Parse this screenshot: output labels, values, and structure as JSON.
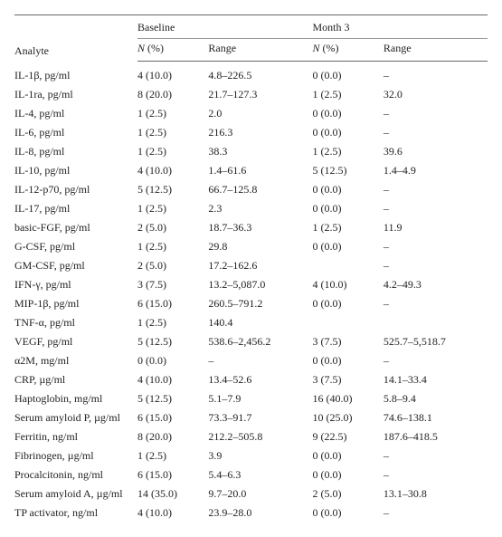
{
  "table": {
    "font_family": "Times New Roman",
    "font_size_pt": 9,
    "text_color": "#222222",
    "background_color": "#ffffff",
    "rule_color": "#666666",
    "header": {
      "analyte_label": "Analyte",
      "groups": [
        "Baseline",
        "Month 3"
      ],
      "sub_n_label": "N (%)",
      "sub_range_label": "Range",
      "n_label_italic_prefix": "N",
      "n_label_rest": " (%)"
    },
    "rows": [
      {
        "analyte": "IL-1β, pg/ml",
        "baseline_n": "4 (10.0)",
        "baseline_range": "4.8–226.5",
        "m3_n": "0 (0.0)",
        "m3_range": "–"
      },
      {
        "analyte": "IL-1ra, pg/ml",
        "baseline_n": "8 (20.0)",
        "baseline_range": "21.7–127.3",
        "m3_n": "1 (2.5)",
        "m3_range": "32.0"
      },
      {
        "analyte": "IL-4, pg/ml",
        "baseline_n": "1 (2.5)",
        "baseline_range": "2.0",
        "m3_n": "0 (0.0)",
        "m3_range": "–"
      },
      {
        "analyte": "IL-6, pg/ml",
        "baseline_n": "1 (2.5)",
        "baseline_range": "216.3",
        "m3_n": "0 (0.0)",
        "m3_range": "–"
      },
      {
        "analyte": "IL-8, pg/ml",
        "baseline_n": "1 (2.5)",
        "baseline_range": "38.3",
        "m3_n": "1 (2.5)",
        "m3_range": "39.6"
      },
      {
        "analyte": "IL-10, pg/ml",
        "baseline_n": "4 (10.0)",
        "baseline_range": "1.4–61.6",
        "m3_n": "5 (12.5)",
        "m3_range": "1.4–4.9"
      },
      {
        "analyte": "IL-12-p70, pg/ml",
        "baseline_n": "5 (12.5)",
        "baseline_range": "66.7–125.8",
        "m3_n": "0 (0.0)",
        "m3_range": "–"
      },
      {
        "analyte": "IL-17, pg/ml",
        "baseline_n": "1 (2.5)",
        "baseline_range": "2.3",
        "m3_n": "0 (0.0)",
        "m3_range": "–"
      },
      {
        "analyte": "basic-FGF, pg/ml",
        "baseline_n": "2 (5.0)",
        "baseline_range": "18.7–36.3",
        "m3_n": "1 (2.5)",
        "m3_range": "11.9"
      },
      {
        "analyte": "G-CSF, pg/ml",
        "baseline_n": "1 (2.5)",
        "baseline_range": "29.8",
        "m3_n": "0 (0.0)",
        "m3_range": "–"
      },
      {
        "analyte": "GM-CSF, pg/ml",
        "baseline_n": "2 (5.0)",
        "baseline_range": "17.2–162.6",
        "m3_n": "",
        "m3_range": "–"
      },
      {
        "analyte": "IFN-γ, pg/ml",
        "baseline_n": "3 (7.5)",
        "baseline_range": "13.2–5,087.0",
        "m3_n": "4 (10.0)",
        "m3_range": "4.2–49.3"
      },
      {
        "analyte": "MIP-1β, pg/ml",
        "baseline_n": "6 (15.0)",
        "baseline_range": "260.5–791.2",
        "m3_n": "0 (0.0)",
        "m3_range": "–"
      },
      {
        "analyte": "TNF-α, pg/ml",
        "baseline_n": "1 (2.5)",
        "baseline_range": "140.4",
        "m3_n": "",
        "m3_range": ""
      },
      {
        "analyte": "VEGF, pg/ml",
        "baseline_n": "5 (12.5)",
        "baseline_range": "538.6–2,456.2",
        "m3_n": "3 (7.5)",
        "m3_range": "525.7–5,518.7"
      },
      {
        "analyte": "α2M, mg/ml",
        "baseline_n": "0 (0.0)",
        "baseline_range": "–",
        "m3_n": "0 (0.0)",
        "m3_range": "–"
      },
      {
        "analyte": "CRP, µg/ml",
        "baseline_n": "4 (10.0)",
        "baseline_range": "13.4–52.6",
        "m3_n": "3 (7.5)",
        "m3_range": "14.1–33.4"
      },
      {
        "analyte": "Haptoglobin, mg/ml",
        "baseline_n": "5 (12.5)",
        "baseline_range": "5.1–7.9",
        "m3_n": "16 (40.0)",
        "m3_range": "5.8–9.4"
      },
      {
        "analyte": "Serum amyloid P, µg/ml",
        "baseline_n": "6 (15.0)",
        "baseline_range": "73.3–91.7",
        "m3_n": "10 (25.0)",
        "m3_range": "74.6–138.1"
      },
      {
        "analyte": "Ferritin, ng/ml",
        "baseline_n": "8 (20.0)",
        "baseline_range": "212.2–505.8",
        "m3_n": "9 (22.5)",
        "m3_range": "187.6–418.5"
      },
      {
        "analyte": "Fibrinogen, µg/ml",
        "baseline_n": "1 (2.5)",
        "baseline_range": "3.9",
        "m3_n": "0 (0.0)",
        "m3_range": "–"
      },
      {
        "analyte": "Procalcitonin, ng/ml",
        "baseline_n": "6 (15.0)",
        "baseline_range": "5.4–6.3",
        "m3_n": "0 (0.0)",
        "m3_range": "–"
      },
      {
        "analyte": "Serum amyloid A, µg/ml",
        "baseline_n": "14 (35.0)",
        "baseline_range": "9.7–20.0",
        "m3_n": "2 (5.0)",
        "m3_range": "13.1–30.8"
      },
      {
        "analyte": "TP activator, ng/ml",
        "baseline_n": "4 (10.0)",
        "baseline_range": "23.9–28.0",
        "m3_n": "0 (0.0)",
        "m3_range": "–"
      }
    ]
  }
}
